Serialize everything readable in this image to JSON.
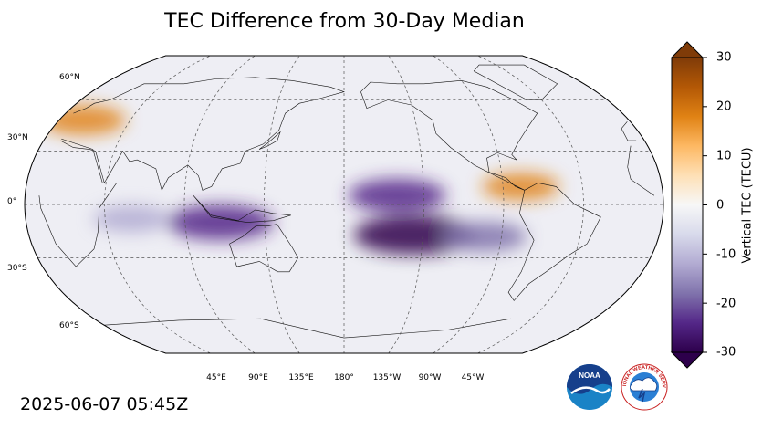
{
  "title": "TEC Difference from 30-Day Median",
  "timestamp": "2025-06-07 05:45Z",
  "map": {
    "projection": "robinson",
    "central_longitude": 180,
    "lat_labels": [
      "60°N",
      "30°N",
      "0°",
      "30°S",
      "60°S"
    ],
    "lon_labels": [
      "45°E",
      "90°E",
      "135°E",
      "180°",
      "135°W",
      "90°W",
      "45°W"
    ],
    "anomalies": [
      {
        "name": "central-pacific-south-minimum",
        "lon": -140,
        "lat": -17,
        "value": -30
      },
      {
        "name": "central-pacific-north-minimum",
        "lon": -150,
        "lat": 5,
        "value": -22
      },
      {
        "name": "indonesia-australia-minimum",
        "lon": 110,
        "lat": -10,
        "value": -25
      },
      {
        "name": "indian-ocean-minimum",
        "lon": 60,
        "lat": -8,
        "value": -15
      },
      {
        "name": "south-american-west-minimum",
        "lon": -100,
        "lat": -18,
        "value": -18
      },
      {
        "name": "europe-maximum",
        "lon": 15,
        "lat": 48,
        "value": 18
      },
      {
        "name": "central-america-maximum",
        "lon": -80,
        "lat": 10,
        "value": 15
      }
    ]
  },
  "colorbar": {
    "min": -30,
    "max": 30,
    "ticks": [
      "30",
      "20",
      "10",
      "0",
      "-10",
      "-20",
      "-30"
    ],
    "label": "Vertical TEC (TECU)",
    "colors": [
      "#2d004b",
      "#542788",
      "#8073ac",
      "#b2abd2",
      "#d8daeb",
      "#f7f7f7",
      "#fee0b6",
      "#fdb863",
      "#e08214",
      "#b35806",
      "#7f3b08"
    ]
  },
  "logos": {
    "noaa": "NOAA",
    "nws": "NATIONAL WEATHER SERVICE"
  }
}
